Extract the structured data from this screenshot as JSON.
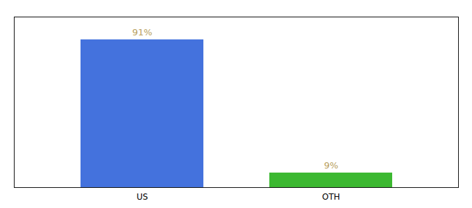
{
  "chart_data": {
    "type": "bar",
    "categories": [
      "US",
      "OTH"
    ],
    "values": [
      91,
      9
    ],
    "value_labels": [
      "91%",
      "9%"
    ],
    "data_labels": true,
    "colors": [
      "#4472DD",
      "#3CB831"
    ],
    "ylim": [
      0,
      105
    ],
    "tick_labels": "x",
    "grid": false
  }
}
